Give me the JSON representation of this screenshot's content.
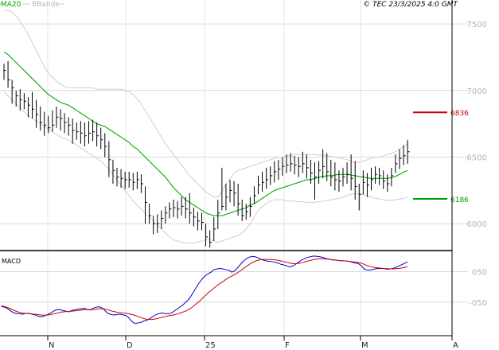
{
  "header": {
    "ma_label": "MA20",
    "bb_label": "BBands",
    "source": "© TEC 23/3/2025 4:0 GMT"
  },
  "chart_data": [
    {
      "type": "ohlc",
      "x_labels": [
        "N",
        "D",
        "25",
        "F",
        "M",
        "A"
      ],
      "y_ticks": [
        7500,
        7000,
        6500,
        6000
      ],
      "y_tick_labels": [
        "7500",
        "7000",
        "6500",
        "6000"
      ],
      "ylim": [
        5810,
        7590
      ],
      "grid": true,
      "last_date_index": 100,
      "total_periods": 112,
      "close": [
        7150,
        7080,
        7020,
        6960,
        6930,
        6920,
        6890,
        6860,
        6820,
        6760,
        6740,
        6720,
        6740,
        6800,
        6790,
        6760,
        6740,
        6700,
        6690,
        6680,
        6660,
        6680,
        6690,
        6660,
        6630,
        6580,
        6480,
        6400,
        6350,
        6340,
        6330,
        6330,
        6310,
        6330,
        6300,
        6160,
        6060,
        6000,
        6000,
        6040,
        6080,
        6110,
        6120,
        6110,
        6130,
        6110,
        6080,
        6050,
        6020,
        6010,
        5900,
        5860,
        5960,
        6080,
        6130,
        6200,
        6250,
        6230,
        6150,
        6060,
        6090,
        6130,
        6210,
        6290,
        6310,
        6330,
        6360,
        6390,
        6410,
        6430,
        6440,
        6450,
        6440,
        6430,
        6450,
        6420,
        6380,
        6350,
        6400,
        6430,
        6390,
        6350,
        6330,
        6320,
        6350,
        6370,
        6340,
        6280,
        6220,
        6310,
        6290,
        6330,
        6370,
        6360,
        6320,
        6300,
        6360,
        6450,
        6490,
        6510,
        6540
      ],
      "hl": [
        [
          7200,
          7080
        ],
        [
          7220,
          7020
        ],
        [
          7080,
          6900
        ],
        [
          7000,
          6880
        ],
        [
          7010,
          6850
        ],
        [
          6980,
          6860
        ],
        [
          6950,
          6800
        ],
        [
          6990,
          6790
        ],
        [
          6930,
          6720
        ],
        [
          6880,
          6700
        ],
        [
          6840,
          6660
        ],
        [
          6810,
          6680
        ],
        [
          6850,
          6690
        ],
        [
          6880,
          6720
        ],
        [
          6860,
          6700
        ],
        [
          6830,
          6680
        ],
        [
          6800,
          6660
        ],
        [
          6790,
          6600
        ],
        [
          6760,
          6630
        ],
        [
          6770,
          6600
        ],
        [
          6760,
          6580
        ],
        [
          6770,
          6600
        ],
        [
          6780,
          6620
        ],
        [
          6760,
          6580
        ],
        [
          6720,
          6560
        ],
        [
          6680,
          6500
        ],
        [
          6620,
          6350
        ],
        [
          6480,
          6300
        ],
        [
          6420,
          6280
        ],
        [
          6410,
          6270
        ],
        [
          6390,
          6260
        ],
        [
          6390,
          6270
        ],
        [
          6380,
          6250
        ],
        [
          6390,
          6260
        ],
        [
          6370,
          6230
        ],
        [
          6280,
          6000
        ],
        [
          6150,
          6000
        ],
        [
          6060,
          5920
        ],
        [
          6070,
          5930
        ],
        [
          6100,
          5960
        ],
        [
          6130,
          6000
        ],
        [
          6160,
          6040
        ],
        [
          6180,
          6050
        ],
        [
          6170,
          6040
        ],
        [
          6200,
          6060
        ],
        [
          6200,
          6040
        ],
        [
          6230,
          6000
        ],
        [
          6120,
          5980
        ],
        [
          6090,
          5950
        ],
        [
          6080,
          5950
        ],
        [
          6000,
          5830
        ],
        [
          5950,
          5820
        ],
        [
          6050,
          5870
        ],
        [
          6180,
          5960
        ],
        [
          6420,
          6100
        ],
        [
          6300,
          6100
        ],
        [
          6330,
          6160
        ],
        [
          6320,
          6130
        ],
        [
          6300,
          6060
        ],
        [
          6180,
          6020
        ],
        [
          6150,
          6030
        ],
        [
          6200,
          6050
        ],
        [
          6280,
          6150
        ],
        [
          6360,
          6220
        ],
        [
          6390,
          6240
        ],
        [
          6420,
          6260
        ],
        [
          6430,
          6290
        ],
        [
          6470,
          6310
        ],
        [
          6480,
          6330
        ],
        [
          6500,
          6360
        ],
        [
          6520,
          6380
        ],
        [
          6530,
          6390
        ],
        [
          6510,
          6370
        ],
        [
          6500,
          6350
        ],
        [
          6540,
          6380
        ],
        [
          6520,
          6340
        ],
        [
          6480,
          6300
        ],
        [
          6460,
          6180
        ],
        [
          6470,
          6300
        ],
        [
          6560,
          6340
        ],
        [
          6530,
          6320
        ],
        [
          6480,
          6280
        ],
        [
          6460,
          6250
        ],
        [
          6400,
          6240
        ],
        [
          6420,
          6280
        ],
        [
          6460,
          6300
        ],
        [
          6520,
          6250
        ],
        [
          6470,
          6180
        ],
        [
          6300,
          6100
        ],
        [
          6400,
          6220
        ],
        [
          6380,
          6200
        ],
        [
          6420,
          6250
        ],
        [
          6430,
          6300
        ],
        [
          6420,
          6290
        ],
        [
          6400,
          6260
        ],
        [
          6370,
          6240
        ],
        [
          6420,
          6280
        ],
        [
          6520,
          6380
        ],
        [
          6560,
          6410
        ],
        [
          6590,
          6440
        ],
        [
          6630,
          6450
        ]
      ],
      "ma20": [
        7290,
        7270,
        7240,
        7210,
        7180,
        7150,
        7120,
        7090,
        7060,
        7030,
        7000,
        6970,
        6950,
        6930,
        6910,
        6900,
        6890,
        6870,
        6850,
        6830,
        6810,
        6790,
        6770,
        6750,
        6740,
        6730,
        6710,
        6690,
        6670,
        6650,
        6630,
        6610,
        6580,
        6560,
        6530,
        6500,
        6470,
        6440,
        6410,
        6380,
        6350,
        6310,
        6270,
        6240,
        6210,
        6180,
        6160,
        6140,
        6120,
        6100,
        6080,
        6070,
        6060,
        6060,
        6060,
        6070,
        6080,
        6090,
        6100,
        6110,
        6120,
        6140,
        6150,
        6170,
        6190,
        6210,
        6230,
        6250,
        6260,
        6270,
        6280,
        6290,
        6300,
        6310,
        6320,
        6330,
        6330,
        6340,
        6350,
        6355,
        6360,
        6360,
        6365,
        6370,
        6370,
        6370,
        6365,
        6360,
        6355,
        6350,
        6345,
        6340,
        6340,
        6340,
        6340,
        6340,
        6345,
        6355,
        6370,
        6385,
        6400
      ],
      "bb_upper": [
        7600,
        7600,
        7590,
        7560,
        7520,
        7470,
        7420,
        7360,
        7300,
        7240,
        7180,
        7130,
        7100,
        7070,
        7050,
        7030,
        7020,
        7020,
        7020,
        7020,
        7020,
        7020,
        7020,
        7010,
        7010,
        7010,
        7010,
        7010,
        7010,
        7010,
        7000,
        6990,
        6970,
        6940,
        6900,
        6850,
        6800,
        6750,
        6700,
        6650,
        6600,
        6560,
        6520,
        6480,
        6440,
        6400,
        6360,
        6330,
        6300,
        6270,
        6240,
        6220,
        6200,
        6200,
        6240,
        6300,
        6340,
        6380,
        6400,
        6410,
        6420,
        6430,
        6440,
        6450,
        6460,
        6470,
        6480,
        6490,
        6500,
        6500,
        6510,
        6510,
        6520,
        6520,
        6520,
        6520,
        6520,
        6520,
        6515,
        6515,
        6510,
        6505,
        6500,
        6495,
        6490,
        6480,
        6470,
        6460,
        6460,
        6470,
        6480,
        6490,
        6500,
        6500,
        6510,
        6520,
        6530,
        6540,
        6560,
        6580,
        6600
      ],
      "bb_lower": [
        6990,
        6960,
        6930,
        6900,
        6870,
        6840,
        6810,
        6790,
        6770,
        6750,
        6730,
        6710,
        6690,
        6670,
        6650,
        6640,
        6630,
        6610,
        6590,
        6570,
        6550,
        6530,
        6510,
        6490,
        6470,
        6440,
        6410,
        6370,
        6330,
        6290,
        6250,
        6210,
        6170,
        6140,
        6110,
        6080,
        6050,
        6020,
        5990,
        5960,
        5930,
        5900,
        5880,
        5870,
        5860,
        5855,
        5855,
        5855,
        5860,
        5870,
        5880,
        5880,
        5870,
        5860,
        5870,
        5880,
        5890,
        5900,
        5910,
        5930,
        5960,
        6000,
        6050,
        6100,
        6130,
        6150,
        6170,
        6180,
        6180,
        6180,
        6170,
        6170,
        6170,
        6165,
        6165,
        6160,
        6160,
        6160,
        6165,
        6170,
        6175,
        6180,
        6185,
        6190,
        6200,
        6210,
        6220,
        6225,
        6225,
        6220,
        6210,
        6200,
        6190,
        6185,
        6180,
        6175,
        6175,
        6180,
        6185,
        6190,
        6200
      ],
      "annotations": [
        {
          "label": "6836",
          "value": 6836,
          "color": "#cc0000"
        },
        {
          "label": "6186",
          "value": 6186,
          "color": "#009900"
        }
      ]
    },
    {
      "type": "line",
      "title": "MACD",
      "x_labels": [
        "N",
        "D",
        "25",
        "F",
        "M",
        "A"
      ],
      "y_ticks": [
        50,
        -50
      ],
      "y_tick_labels": [
        "050",
        "-050"
      ],
      "ylim": [
        -155,
        106
      ],
      "grid": true,
      "series": [
        {
          "color": "#0000cc",
          "values": [
            -65,
            -66,
            -70,
            -76,
            -82,
            -86,
            -88,
            -88,
            -90,
            -88,
            -87,
            -88,
            -90,
            -92,
            -96,
            -98,
            -97,
            -94,
            -90,
            -86,
            -80,
            -76,
            -74,
            -76,
            -78,
            -80,
            -82,
            -78,
            -76,
            -74,
            -72,
            -72,
            -70,
            -74,
            -76,
            -72,
            -68,
            -66,
            -66,
            -70,
            -78,
            -86,
            -90,
            -92,
            -92,
            -90,
            -90,
            -92,
            -94,
            -100,
            -110,
            -118,
            -120,
            -118,
            -116,
            -112,
            -110,
            -106,
            -100,
            -95,
            -90,
            -88,
            -85,
            -88,
            -88,
            -88,
            -84,
            -78,
            -72,
            -66,
            -60,
            -52,
            -44,
            -34,
            -20,
            -6,
            8,
            20,
            30,
            38,
            44,
            48,
            56,
            58,
            60,
            60,
            58,
            56,
            54,
            48,
            52,
            60,
            70,
            80,
            88,
            94,
            98,
            100,
            99,
            96,
            92,
            88,
            86,
            84,
            84,
            82,
            80,
            78,
            74,
            72,
            70,
            66,
            66,
            70,
            76,
            82,
            88,
            92,
            96,
            98,
            100,
            101,
            100,
            99,
            97,
            94,
            92,
            90,
            88,
            88,
            87,
            86,
            86,
            85,
            84,
            82,
            80,
            78,
            76,
            70,
            60,
            56,
            55,
            56,
            58,
            60,
            60,
            60,
            60,
            58,
            58,
            60,
            62,
            66,
            70,
            74,
            78,
            82
          ]
        },
        {
          "color": "#cc0000",
          "values": [
            -62,
            -64,
            -67,
            -70,
            -74,
            -78,
            -81,
            -84,
            -86,
            -87,
            -88,
            -88,
            -89,
            -90,
            -91,
            -92,
            -93,
            -93,
            -92,
            -91,
            -89,
            -87,
            -85,
            -83,
            -82,
            -81,
            -81,
            -80,
            -79,
            -78,
            -77,
            -76,
            -75,
            -75,
            -75,
            -75,
            -74,
            -73,
            -72,
            -72,
            -73,
            -75,
            -78,
            -80,
            -82,
            -84,
            -85,
            -86,
            -87,
            -88,
            -90,
            -92,
            -95,
            -98,
            -101,
            -104,
            -106,
            -107,
            -107,
            -106,
            -104,
            -102,
            -100,
            -98,
            -96,
            -94,
            -93,
            -91,
            -89,
            -86,
            -83,
            -80,
            -76,
            -71,
            -65,
            -58,
            -51,
            -43,
            -35,
            -27,
            -19,
            -12,
            -5,
            2,
            8,
            14,
            20,
            26,
            31,
            35,
            40,
            45,
            51,
            57,
            63,
            69,
            75,
            80,
            84,
            87,
            89,
            90,
            90,
            90,
            90,
            89,
            88,
            87,
            85,
            83,
            81,
            79,
            77,
            76,
            76,
            77,
            79,
            81,
            84,
            86,
            88,
            90,
            91,
            92,
            92,
            92,
            91,
            90,
            89,
            88,
            87,
            86,
            85,
            85,
            84,
            83,
            82,
            81,
            80,
            78,
            75,
            71,
            68,
            66,
            64,
            63,
            62,
            61,
            60,
            60,
            59,
            59,
            59,
            60,
            61,
            62,
            64,
            66
          ]
        }
      ]
    }
  ]
}
